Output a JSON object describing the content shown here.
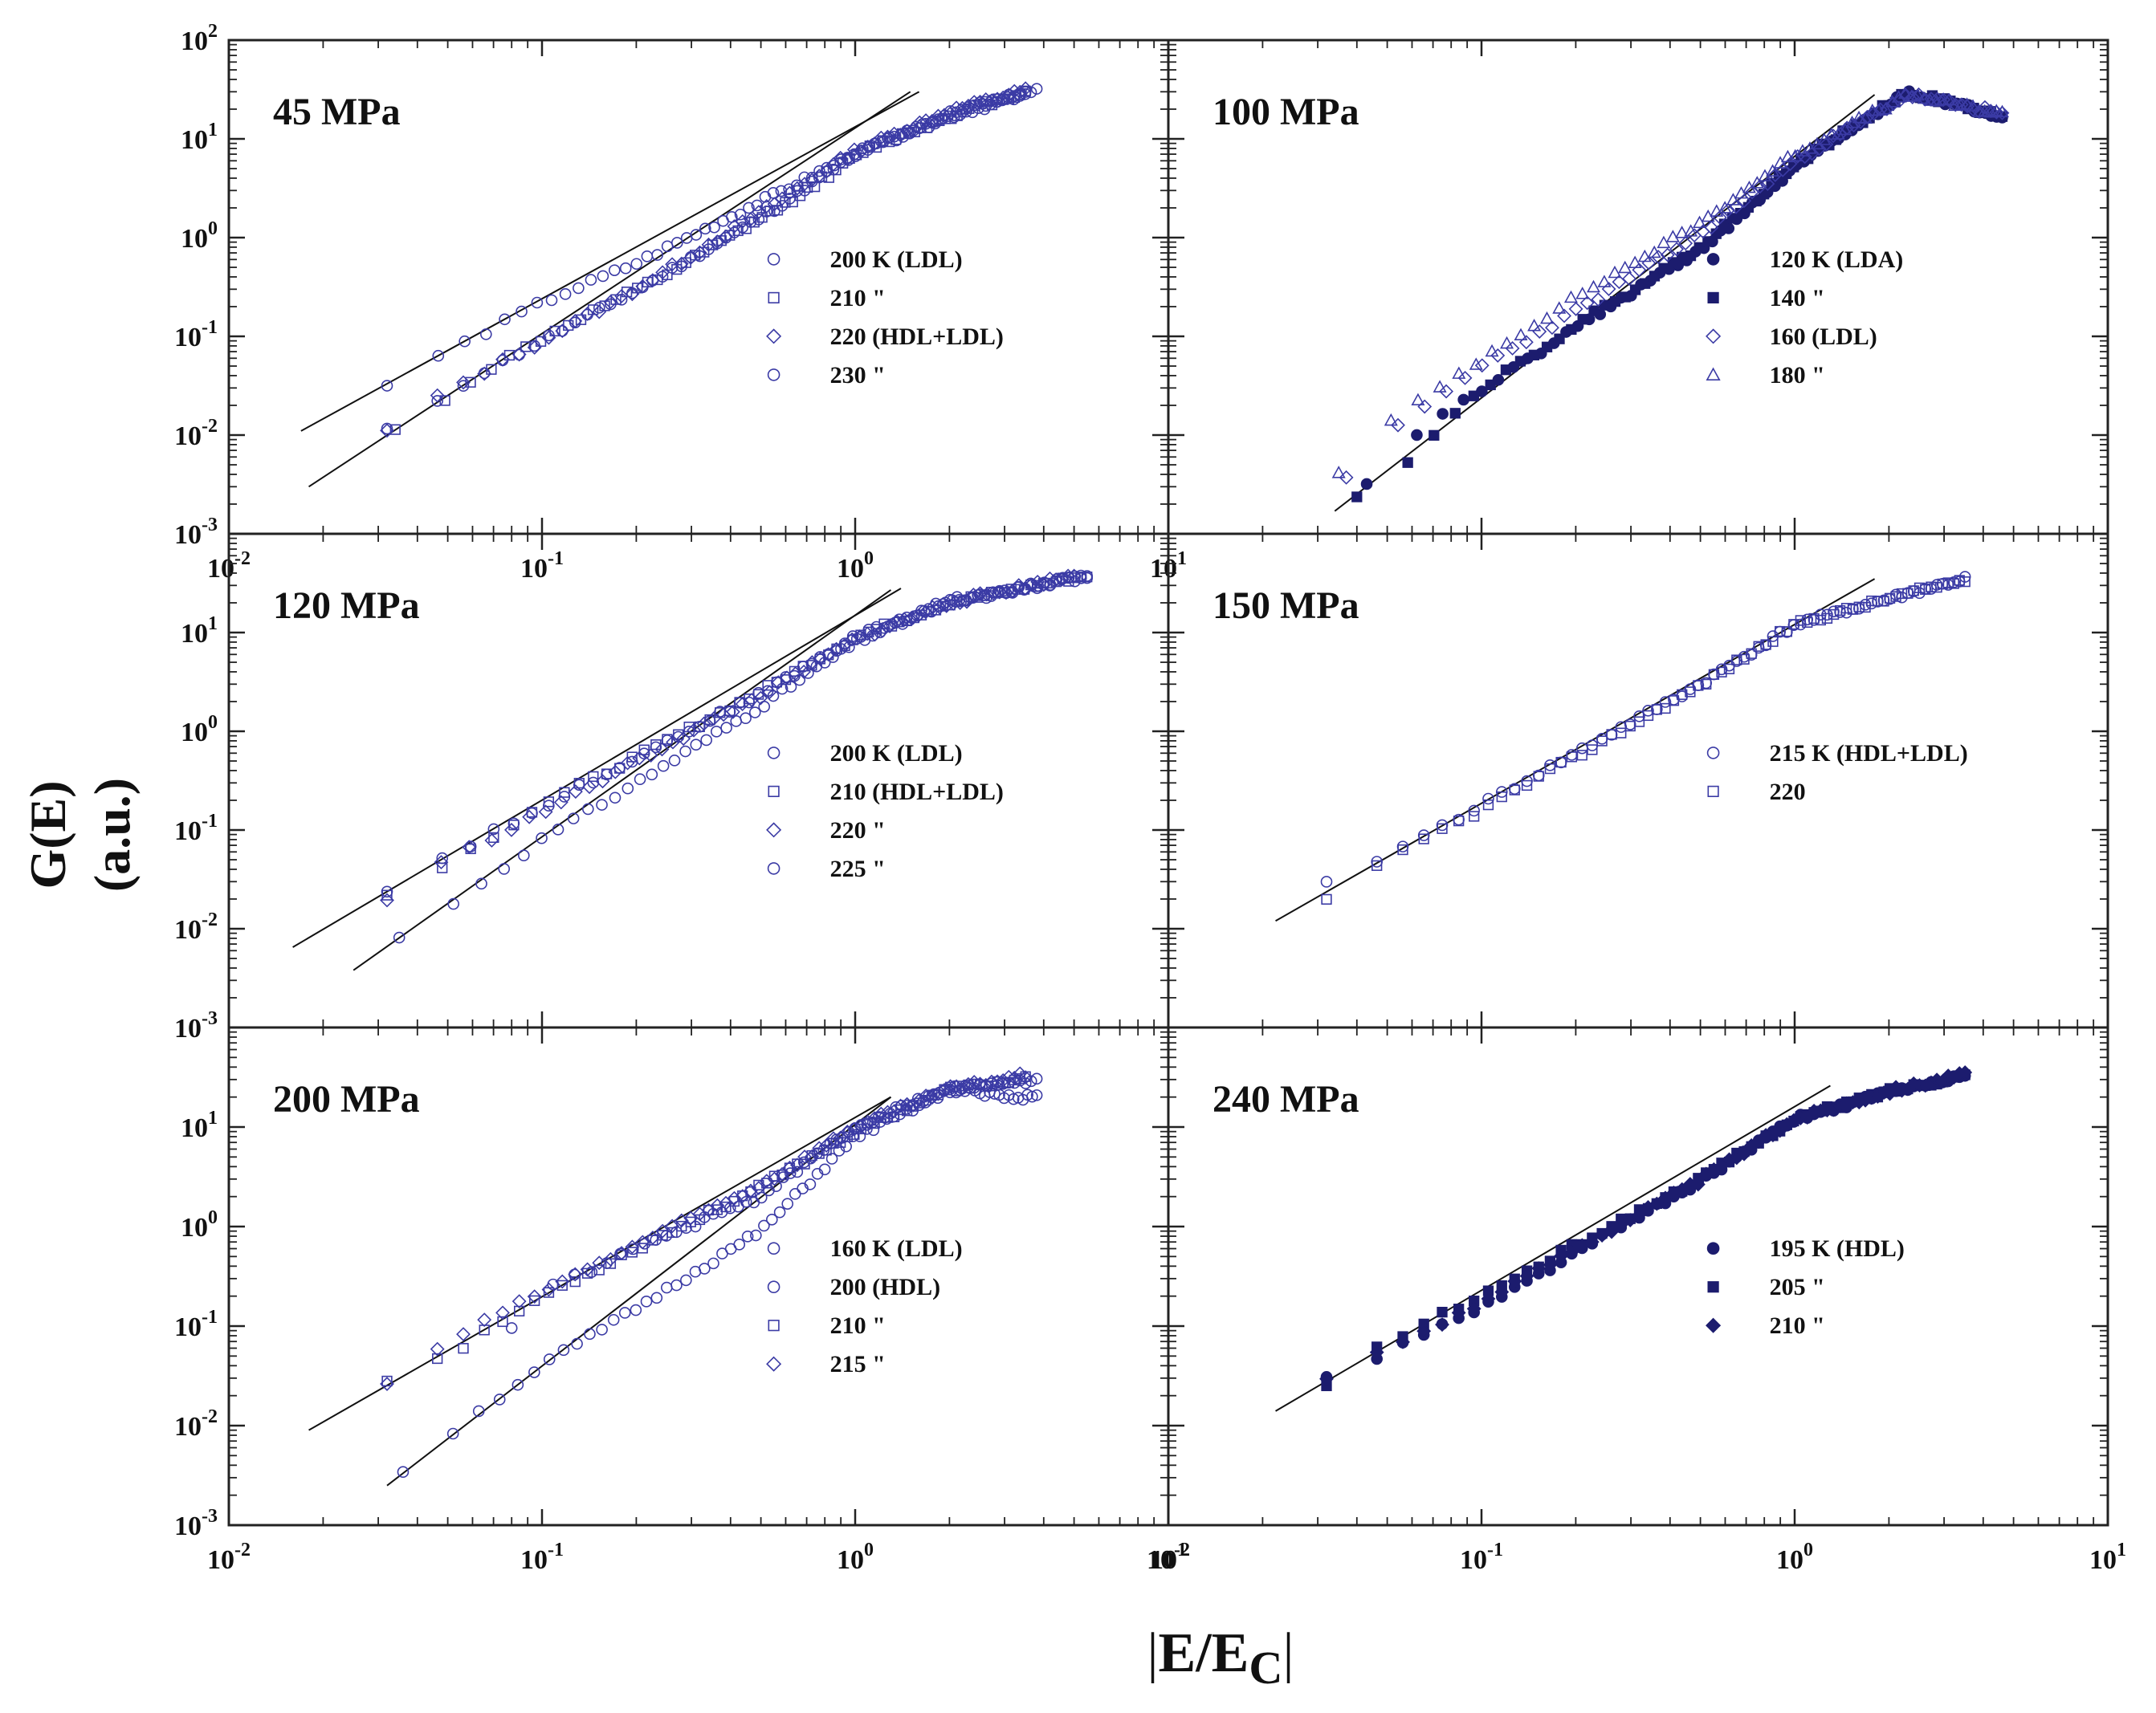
{
  "y_axis_title": "G(E) (a.u.)",
  "x_axis_title": {
    "prefix": "E/E",
    "subscript": "C"
  },
  "colors": {
    "data": "#3b3ba5",
    "dark": "#1c1c6e",
    "fit": "#111111",
    "frame": "#222222"
  },
  "chart_data": [
    {
      "type": "scatter",
      "title": "45 MPa",
      "xscale": "log",
      "yscale": "log",
      "xlim": [
        0.01,
        10
      ],
      "ylim": [
        0.001,
        100
      ],
      "legend_position": "right",
      "xtick_labels": [
        "10^-2",
        "10^-1",
        "10^0",
        "10^1"
      ],
      "ytick_labels": [
        "10^-3",
        "10^-2",
        "10^-1",
        "10^0",
        "10^1",
        "10^2"
      ],
      "series": [
        {
          "name": "200 K (LDL)",
          "marker": "circle",
          "seed": 11,
          "x": [
            0.032,
            0.06,
            0.1,
            0.2,
            0.5,
            1.0,
            2.0,
            3.5
          ],
          "y": [
            0.011,
            0.038,
            0.09,
            0.29,
            1.6,
            7.0,
            18,
            30
          ]
        },
        {
          "name": "210 \"",
          "marker": "square",
          "seed": 12,
          "x": [
            0.034,
            0.07,
            0.12,
            0.25,
            0.6,
            1.1,
            2.2,
            3.5
          ],
          "y": [
            0.011,
            0.05,
            0.13,
            0.42,
            2.2,
            8.0,
            19,
            30
          ]
        },
        {
          "name": "220 (HDL+LDL)",
          "marker": "diamond",
          "seed": 13,
          "x": [
            0.032,
            0.05,
            0.1,
            0.2,
            0.5,
            1.0,
            2.0,
            3.5
          ],
          "y": [
            0.011,
            0.028,
            0.09,
            0.3,
            1.8,
            7.5,
            19,
            31
          ]
        },
        {
          "name": "230 \"",
          "marker": "circle",
          "seed": 14,
          "x": [
            0.032,
            0.05,
            0.1,
            0.2,
            0.5,
            1.0,
            2.0,
            3.8
          ],
          "y": [
            0.032,
            0.07,
            0.22,
            0.55,
            2.3,
            7.0,
            17,
            30
          ]
        }
      ],
      "fit_lines": [
        {
          "x": [
            0.017,
            1.6
          ],
          "y": [
            0.011,
            30
          ]
        },
        {
          "x": [
            0.018,
            1.5
          ],
          "y": [
            0.003,
            30
          ]
        }
      ]
    },
    {
      "type": "scatter",
      "title": "100 MPa",
      "xscale": "log",
      "yscale": "log",
      "xlim": [
        0.01,
        10
      ],
      "ylim": [
        0.001,
        100
      ],
      "legend_position": "right",
      "xtick_labels": [],
      "ytick_labels": [],
      "series": [
        {
          "name": "120 K (LDA)",
          "marker": "circle-filled",
          "seed": 21,
          "x": [
            0.043,
            0.07,
            0.1,
            0.2,
            0.5,
            1.0,
            2.3,
            4.6
          ],
          "y": [
            0.0033,
            0.015,
            0.028,
            0.12,
            0.75,
            5.0,
            30,
            17
          ]
        },
        {
          "name": "140 \"",
          "marker": "square-filled",
          "seed": 22,
          "x": [
            0.04,
            0.06,
            0.1,
            0.2,
            0.5,
            1.0,
            2.3,
            4.6
          ],
          "y": [
            0.0025,
            0.006,
            0.03,
            0.13,
            0.8,
            5.5,
            30,
            17
          ]
        },
        {
          "name": "160 (LDL)",
          "marker": "diamond",
          "seed": 23,
          "x": [
            0.037,
            0.05,
            0.1,
            0.2,
            0.5,
            1.0,
            2.3,
            4.6
          ],
          "y": [
            0.0035,
            0.01,
            0.05,
            0.18,
            1.1,
            6.0,
            28,
            18
          ]
        },
        {
          "name": "180 \"",
          "marker": "triangle",
          "seed": 24,
          "x": [
            0.035,
            0.05,
            0.1,
            0.2,
            0.5,
            1.0,
            2.3,
            4.6
          ],
          "y": [
            0.004,
            0.013,
            0.06,
            0.25,
            1.4,
            7.0,
            28,
            18
          ]
        }
      ],
      "fit_lines": [
        {
          "x": [
            0.034,
            1.8
          ],
          "y": [
            0.0017,
            28
          ]
        }
      ]
    },
    {
      "type": "scatter",
      "title": "120 MPa",
      "xscale": "log",
      "yscale": "log",
      "xlim": [
        0.01,
        10
      ],
      "ylim": [
        0.001,
        100
      ],
      "legend_position": "right",
      "xtick_labels": [],
      "ytick_labels": [
        "10^-3",
        "10^-2",
        "10^-1",
        "10^0",
        "10^1"
      ],
      "series": [
        {
          "name": "200 K (LDL)",
          "marker": "circle",
          "seed": 31,
          "x": [
            0.035,
            0.06,
            0.1,
            0.2,
            0.5,
            1.0,
            2.0,
            5.5
          ],
          "y": [
            0.008,
            0.025,
            0.08,
            0.3,
            1.8,
            8.0,
            20,
            38
          ]
        },
        {
          "name": "210 (HDL+LDL)",
          "marker": "square",
          "seed": 32,
          "x": [
            0.032,
            0.06,
            0.1,
            0.2,
            0.5,
            1.0,
            2.0,
            5.5
          ],
          "y": [
            0.022,
            0.065,
            0.18,
            0.55,
            2.5,
            9.0,
            20,
            38
          ]
        },
        {
          "name": "220 \"",
          "marker": "diamond",
          "seed": 33,
          "x": [
            0.032,
            0.05,
            0.1,
            0.2,
            0.5,
            1.0,
            2.0,
            5.0
          ],
          "y": [
            0.02,
            0.05,
            0.15,
            0.5,
            2.3,
            8.5,
            20,
            38
          ]
        },
        {
          "name": "225 \"",
          "marker": "circle",
          "seed": 34,
          "x": [
            0.032,
            0.05,
            0.1,
            0.2,
            0.5,
            1.0,
            2.0,
            5.5
          ],
          "y": [
            0.025,
            0.055,
            0.17,
            0.55,
            2.4,
            9.0,
            21,
            37
          ]
        }
      ],
      "fit_lines": [
        {
          "x": [
            0.016,
            1.4
          ],
          "y": [
            0.0065,
            28
          ]
        },
        {
          "x": [
            0.025,
            1.3
          ],
          "y": [
            0.0038,
            27
          ]
        }
      ]
    },
    {
      "type": "scatter",
      "title": "150 MPa",
      "xscale": "log",
      "yscale": "log",
      "xlim": [
        0.01,
        10
      ],
      "ylim": [
        0.001,
        100
      ],
      "legend_position": "right",
      "xtick_labels": [],
      "ytick_labels": [],
      "series": [
        {
          "name": "215 K (HDL+LDL)",
          "marker": "circle",
          "seed": 41,
          "x": [
            0.032,
            0.06,
            0.1,
            0.2,
            0.5,
            1.0,
            2.0,
            3.5
          ],
          "y": [
            0.028,
            0.075,
            0.18,
            0.6,
            3.0,
            12,
            22,
            35
          ]
        },
        {
          "name": "220",
          "marker": "square",
          "seed": 42,
          "x": [
            0.032,
            0.06,
            0.1,
            0.2,
            0.5,
            1.0,
            2.0,
            3.5
          ],
          "y": [
            0.019,
            0.07,
            0.16,
            0.55,
            2.9,
            12,
            22,
            35
          ]
        }
      ],
      "fit_lines": [
        {
          "x": [
            0.022,
            1.8
          ],
          "y": [
            0.012,
            35
          ]
        }
      ]
    },
    {
      "type": "scatter",
      "title": "200 MPa",
      "xscale": "log",
      "yscale": "log",
      "xlim": [
        0.01,
        10
      ],
      "ylim": [
        0.001,
        100
      ],
      "legend_position": "right",
      "xtick_labels": [
        "10^-2",
        "10^-1",
        "10^0",
        "10^1"
      ],
      "ytick_labels": [
        "10^-3",
        "10^-2",
        "10^-1",
        "10^0",
        "10^1"
      ],
      "series": [
        {
          "name": "160 K (LDL)",
          "marker": "circle",
          "seed": 51,
          "x": [
            0.036,
            0.05,
            0.1,
            0.2,
            0.5,
            1.0,
            2.0,
            3.8
          ],
          "y": [
            0.0035,
            0.008,
            0.04,
            0.15,
            0.9,
            8.0,
            23,
            30
          ]
        },
        {
          "name": "200 (HDL)",
          "marker": "circle",
          "seed": 52,
          "x": [
            0.08,
            0.1,
            0.2,
            0.5,
            1.0,
            2.0,
            3.0,
            3.8
          ],
          "y": [
            0.1,
            0.22,
            0.6,
            2.0,
            10,
            25,
            20,
            20
          ]
        },
        {
          "name": "210 \"",
          "marker": "square",
          "seed": 53,
          "x": [
            0.032,
            0.05,
            0.1,
            0.2,
            0.5,
            1.0,
            2.0,
            3.5
          ],
          "y": [
            0.03,
            0.05,
            0.2,
            0.6,
            2.5,
            9.0,
            24,
            30
          ]
        },
        {
          "name": "215 \"",
          "marker": "diamond",
          "seed": 54,
          "x": [
            0.032,
            0.05,
            0.1,
            0.2,
            0.5,
            1.0,
            2.0,
            3.5
          ],
          "y": [
            0.025,
            0.07,
            0.22,
            0.65,
            2.6,
            10,
            24,
            33
          ]
        }
      ],
      "fit_lines": [
        {
          "x": [
            0.018,
            1.3
          ],
          "y": [
            0.009,
            20
          ]
        },
        {
          "x": [
            0.032,
            1.3
          ],
          "y": [
            0.0025,
            20
          ]
        }
      ]
    },
    {
      "type": "scatter",
      "title": "240 MPa",
      "xscale": "log",
      "yscale": "log",
      "xlim": [
        0.01,
        10
      ],
      "ylim": [
        0.001,
        100
      ],
      "legend_position": "right",
      "xtick_labels": [
        "10^-2",
        "10^-1",
        "10^0",
        "10^1"
      ],
      "ytick_labels": [],
      "series": [
        {
          "name": "195 K (HDL)",
          "marker": "circle-filled",
          "seed": 61,
          "x": [
            0.032,
            0.05,
            0.1,
            0.2,
            0.5,
            1.0,
            2.0,
            3.5
          ],
          "y": [
            0.03,
            0.055,
            0.15,
            0.55,
            2.8,
            12,
            22,
            33
          ]
        },
        {
          "name": "205 \"",
          "marker": "square-filled",
          "seed": 62,
          "x": [
            0.032,
            0.05,
            0.1,
            0.2,
            0.5,
            1.0,
            2.0,
            3.5
          ],
          "y": [
            0.025,
            0.07,
            0.2,
            0.65,
            3.0,
            12,
            23,
            33
          ]
        },
        {
          "name": "210 \"",
          "marker": "diamond-filled",
          "seed": 63,
          "x": [
            0.032,
            0.05,
            0.1,
            0.2,
            0.5,
            1.0,
            2.0,
            3.5
          ],
          "y": [
            0.03,
            0.06,
            0.17,
            0.6,
            2.9,
            12,
            23,
            34
          ]
        }
      ],
      "fit_lines": [
        {
          "x": [
            0.022,
            1.3
          ],
          "y": [
            0.014,
            26
          ]
        }
      ]
    }
  ]
}
